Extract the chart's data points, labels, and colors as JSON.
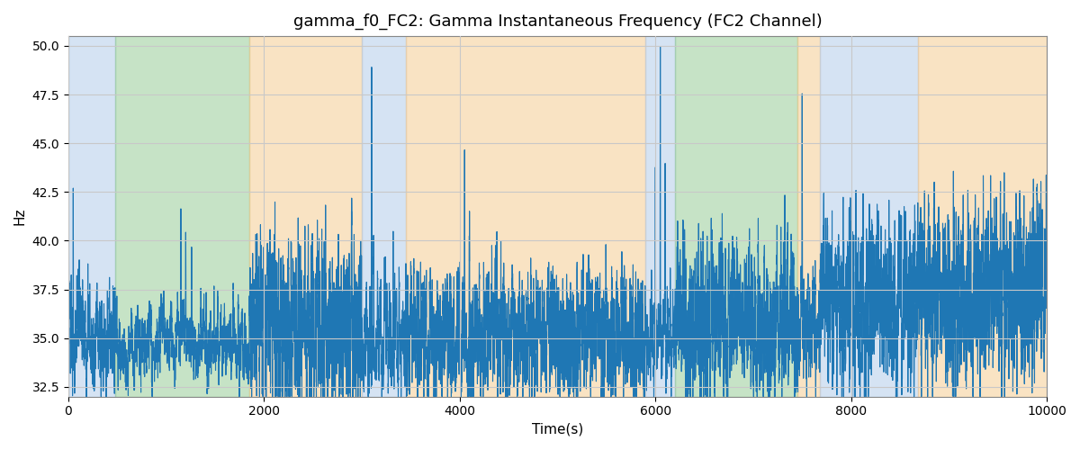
{
  "title": "gamma_f0_FC2: Gamma Instantaneous Frequency (FC2 Channel)",
  "xlabel": "Time(s)",
  "ylabel": "Hz",
  "xlim": [
    0,
    10000
  ],
  "ylim": [
    32.0,
    50.5
  ],
  "yticks": [
    32.5,
    35.0,
    37.5,
    40.0,
    42.5,
    45.0,
    47.5,
    50.0
  ],
  "xticks": [
    0,
    2000,
    4000,
    6000,
    8000,
    10000
  ],
  "line_color": "#1f77b4",
  "line_width": 0.8,
  "bg_color": "#ffffff",
  "grid_color": "#c8c8c8",
  "colored_bands": [
    {
      "xmin": 0,
      "xmax": 480,
      "color": "#adc8e8",
      "alpha": 0.5
    },
    {
      "xmin": 480,
      "xmax": 1850,
      "color": "#8ec88e",
      "alpha": 0.5
    },
    {
      "xmin": 1850,
      "xmax": 3000,
      "color": "#f5c888",
      "alpha": 0.5
    },
    {
      "xmin": 3000,
      "xmax": 3450,
      "color": "#adc8e8",
      "alpha": 0.5
    },
    {
      "xmin": 3450,
      "xmax": 5900,
      "color": "#f5c888",
      "alpha": 0.5
    },
    {
      "xmin": 5900,
      "xmax": 6200,
      "color": "#adc8e8",
      "alpha": 0.5
    },
    {
      "xmin": 6200,
      "xmax": 7450,
      "color": "#8ec88e",
      "alpha": 0.5
    },
    {
      "xmin": 7450,
      "xmax": 7680,
      "color": "#f5c888",
      "alpha": 0.5
    },
    {
      "xmin": 7680,
      "xmax": 8680,
      "color": "#adc8e8",
      "alpha": 0.5
    },
    {
      "xmin": 8680,
      "xmax": 10100,
      "color": "#f5c888",
      "alpha": 0.5
    }
  ]
}
